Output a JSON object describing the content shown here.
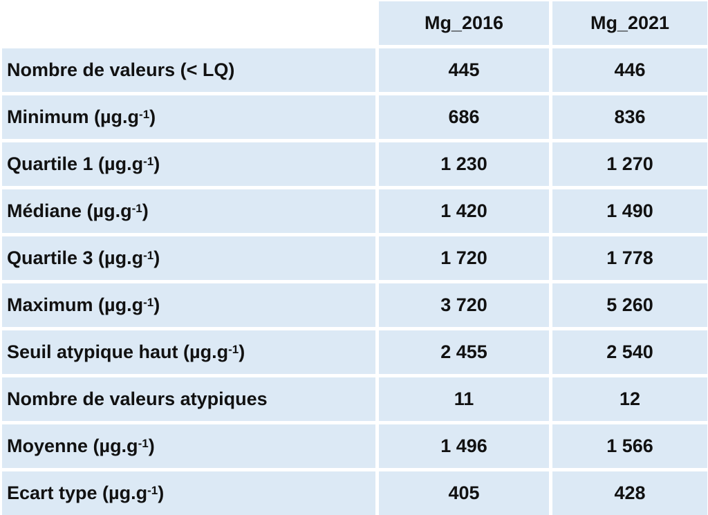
{
  "table": {
    "columns": [
      "Mg_2016",
      "Mg_2021"
    ],
    "rows": [
      {
        "label": "Nombre de valeurs (< LQ)",
        "values": [
          "445",
          "446"
        ]
      },
      {
        "label": "Minimum (µg.g",
        "sup": "-1",
        "suffix": ")",
        "values": [
          "686",
          "836"
        ]
      },
      {
        "label": "Quartile 1 (µg.g",
        "sup": "-1",
        "suffix": ")",
        "values": [
          "1 230",
          "1 270"
        ]
      },
      {
        "label": "Médiane (µg.g",
        "sup": "-1",
        "suffix": ")",
        "values": [
          "1 420",
          "1 490"
        ]
      },
      {
        "label": "Quartile 3 (µg.g",
        "sup": "-1",
        "suffix": ")",
        "values": [
          "1 720",
          "1 778"
        ]
      },
      {
        "label": "Maximum (µg.g",
        "sup": "-1",
        "suffix": ")",
        "values": [
          "3 720",
          "5 260"
        ]
      },
      {
        "label": "Seuil atypique haut (µg.g",
        "sup": "-1",
        "suffix": ")",
        "values": [
          "2 455",
          "2 540"
        ]
      },
      {
        "label": "Nombre de valeurs atypiques",
        "values": [
          "11",
          "12"
        ]
      },
      {
        "label": "Moyenne (µg.g",
        "sup": "-1",
        "suffix": ")",
        "values": [
          "1 496",
          "1 566"
        ]
      },
      {
        "label": "Ecart type (µg.g",
        "sup": "-1",
        "suffix": ")",
        "values": [
          "405",
          "428"
        ]
      }
    ]
  }
}
